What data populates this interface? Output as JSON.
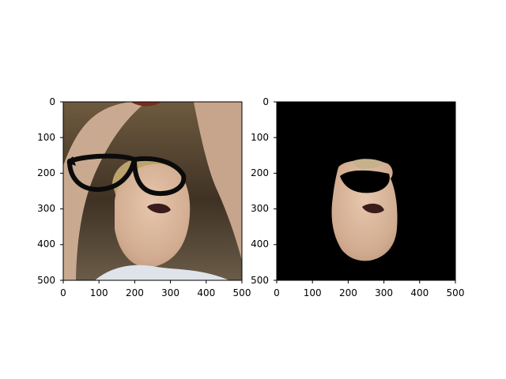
{
  "figure": {
    "panels": [
      {
        "id": "left",
        "image": "cropped photo of a person with black glasses overlay",
        "x_ticks": [
          "0",
          "100",
          "200",
          "300",
          "400",
          "500"
        ],
        "y_ticks": [
          "0",
          "100",
          "200",
          "300",
          "400",
          "500"
        ]
      },
      {
        "id": "right",
        "image": "segmented face on black background",
        "x_ticks": [
          "0",
          "100",
          "200",
          "300",
          "400",
          "500"
        ],
        "y_ticks": [
          "0",
          "100",
          "200",
          "300",
          "400",
          "500"
        ]
      }
    ]
  },
  "colors": {
    "glasses": "#0b0b0b",
    "skin": "#d7b49a",
    "hair": "#b9a06a",
    "bg_left": "#5a4a36",
    "bg_right": "#000000"
  }
}
